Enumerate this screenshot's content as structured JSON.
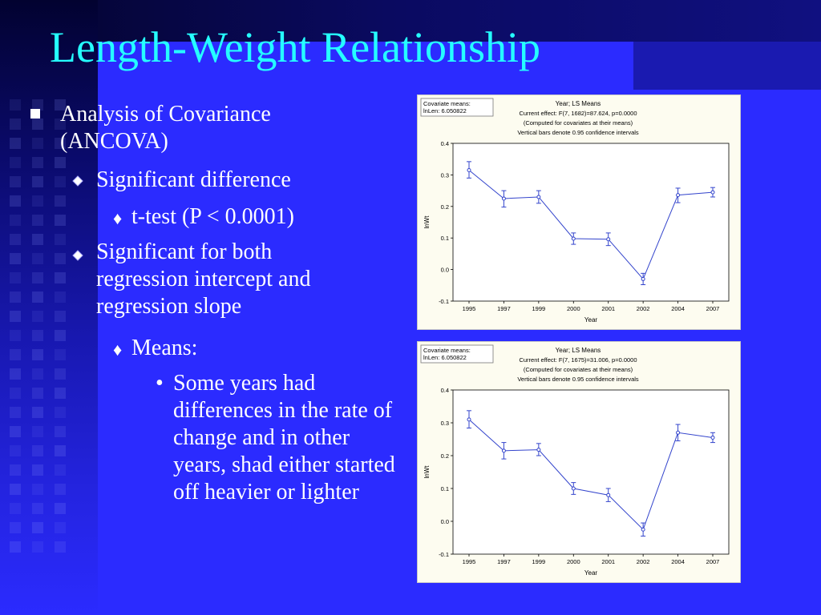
{
  "slide": {
    "title": "Length-Weight Relationship",
    "bullets": {
      "l1": "Analysis of Covariance (ANCOVA)",
      "l2a": "Significant difference",
      "l3a": "t-test (P < 0.0001)",
      "l2b": "Significant for both regression intercept and regression slope",
      "l3b": "Means:",
      "l4": "Some years had differences in the rate of change and in other years, shad either started off heavier or lighter"
    }
  },
  "colors": {
    "background": "#2b2bff",
    "title": "#25ffff",
    "text": "#ffffff",
    "chart_bg": "#fdfcf0",
    "series_line": "#3344cc"
  },
  "chart_data": [
    {
      "type": "line",
      "title": "Year; LS Means",
      "subtitle_lines": [
        "Current effect: F(7, 1682)=87.624, p=0.0000",
        "(Computed for covariates at their means)",
        "Vertical bars denote 0.95 confidence intervals"
      ],
      "covariate_box": [
        "Covariate means:",
        "lnLen: 6.050822"
      ],
      "xlabel": "Year",
      "ylabel": "lnWt",
      "categories": [
        "1995",
        "1997",
        "1999",
        "2000",
        "2001",
        "2002",
        "2004",
        "2007"
      ],
      "values": [
        0.315,
        0.225,
        0.23,
        0.098,
        0.096,
        -0.03,
        0.236,
        0.245
      ],
      "ci_low": [
        0.29,
        0.198,
        0.21,
        0.08,
        0.076,
        -0.048,
        0.212,
        0.23
      ],
      "ci_high": [
        0.342,
        0.25,
        0.25,
        0.116,
        0.116,
        -0.012,
        0.258,
        0.26
      ],
      "ylim": [
        -0.1,
        0.4
      ],
      "yticks": [
        "0.4",
        "0.3",
        "0.2",
        "0.1",
        "0.0",
        "-0.1"
      ],
      "grid": false
    },
    {
      "type": "line",
      "title": "Year; LS Means",
      "subtitle_lines": [
        "Current effect: F(7, 1675)=31.006, p=0.0000",
        "(Computed for covariates at their means)",
        "Vertical bars denote 0.95 confidence intervals"
      ],
      "covariate_box": [
        "Covariate means:",
        "lnLen: 6.050822"
      ],
      "xlabel": "Year",
      "ylabel": "lnWt",
      "categories": [
        "1995",
        "1997",
        "1999",
        "2000",
        "2001",
        "2002",
        "2004",
        "2007"
      ],
      "values": [
        0.31,
        0.215,
        0.218,
        0.1,
        0.08,
        -0.025,
        0.27,
        0.255
      ],
      "ci_low": [
        0.284,
        0.19,
        0.2,
        0.082,
        0.06,
        -0.045,
        0.245,
        0.24
      ],
      "ci_high": [
        0.337,
        0.24,
        0.237,
        0.118,
        0.1,
        -0.005,
        0.295,
        0.27
      ],
      "ylim": [
        -0.1,
        0.4
      ],
      "yticks": [
        "0.4",
        "0.3",
        "0.2",
        "0.1",
        "0.0",
        "-0.1"
      ],
      "grid": false
    }
  ]
}
